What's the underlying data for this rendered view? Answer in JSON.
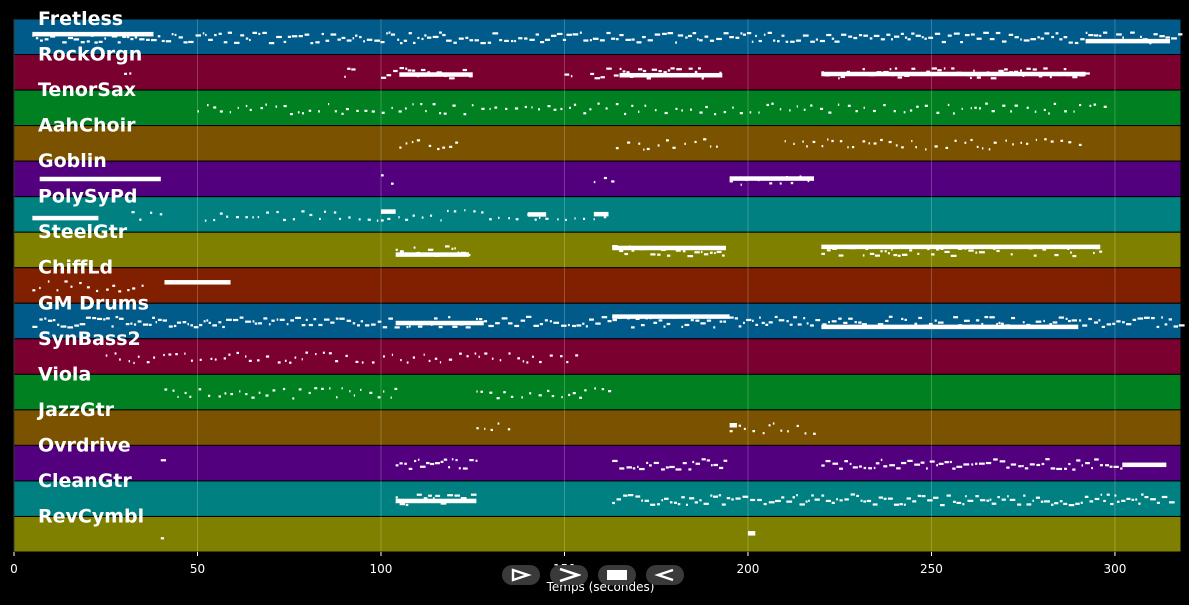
{
  "chart_data": {
    "type": "piano-roll",
    "xlabel": "Temps (secondes)",
    "xlim": [
      0,
      318
    ],
    "x_ticks": [
      0,
      50,
      100,
      150,
      200,
      250,
      300
    ],
    "grid": true,
    "tracks": [
      {
        "name": "Fretless",
        "color": "#005b8a",
        "segments": [
          [
            5,
            318
          ]
        ],
        "dense": true,
        "blocks": [
          [
            5,
            38
          ],
          [
            292,
            315
          ]
        ]
      },
      {
        "name": "RockOrgn",
        "color": "#7a0030",
        "segments": [
          [
            30,
            32
          ],
          [
            90,
            92
          ],
          [
            100,
            125
          ],
          [
            150,
            152
          ],
          [
            157,
            193
          ],
          [
            220,
            292
          ]
        ],
        "dense": true,
        "blocks": [
          [
            105,
            125
          ],
          [
            165,
            193
          ],
          [
            220,
            292
          ]
        ]
      },
      {
        "name": "TenorSax",
        "color": "#008020",
        "segments": [
          [
            50,
            298
          ]
        ],
        "dense": false,
        "blocks": []
      },
      {
        "name": "AahChoir",
        "color": "#7a5200",
        "segments": [
          [
            105,
            122
          ],
          [
            164,
            193
          ],
          [
            210,
            292
          ]
        ],
        "dense": false,
        "blocks": []
      },
      {
        "name": "Goblin",
        "color": "#53007f",
        "segments": [
          [
            100,
            104
          ],
          [
            158,
            163
          ],
          [
            195,
            218
          ]
        ],
        "dense": false,
        "blocks": [
          [
            7,
            40
          ],
          [
            195,
            218
          ]
        ]
      },
      {
        "name": "PolySyPd",
        "color": "#008080",
        "segments": [
          [
            32,
            40
          ],
          [
            52,
            162
          ]
        ],
        "dense": false,
        "blocks": [
          [
            5,
            23
          ],
          [
            100,
            104
          ],
          [
            140,
            145
          ],
          [
            158,
            162
          ]
        ]
      },
      {
        "name": "SteelGtr",
        "color": "#808000",
        "segments": [
          [
            104,
            124
          ],
          [
            163,
            194
          ],
          [
            220,
            296
          ]
        ],
        "dense": true,
        "blocks": [
          [
            104,
            124
          ],
          [
            163,
            194
          ],
          [
            220,
            296
          ]
        ]
      },
      {
        "name": "ChiffLd",
        "color": "#802000",
        "segments": [
          [
            5,
            35
          ]
        ],
        "dense": false,
        "blocks": [
          [
            41,
            59
          ]
        ]
      },
      {
        "name": "GM Drums",
        "color": "#005b8a",
        "segments": [
          [
            5,
            318
          ]
        ],
        "dense": true,
        "blocks": [
          [
            104,
            128
          ],
          [
            163,
            195
          ],
          [
            220,
            290
          ]
        ]
      },
      {
        "name": "SynBass2",
        "color": "#7a0030",
        "segments": [
          [
            25,
            153
          ]
        ],
        "dense": false,
        "blocks": []
      },
      {
        "name": "Viola",
        "color": "#008020",
        "segments": [
          [
            41,
            104
          ],
          [
            126,
            162
          ]
        ],
        "dense": false,
        "blocks": []
      },
      {
        "name": "JazzGtr",
        "color": "#7a5200",
        "segments": [
          [
            126,
            135
          ],
          [
            195,
            218
          ]
        ],
        "dense": false,
        "blocks": [
          [
            195,
            197
          ]
        ]
      },
      {
        "name": "Ovrdrive",
        "color": "#53007f",
        "segments": [
          [
            40,
            41
          ],
          [
            104,
            126
          ],
          [
            163,
            194
          ],
          [
            220,
            302
          ]
        ],
        "dense": true,
        "blocks": [
          [
            302,
            314
          ]
        ]
      },
      {
        "name": "CleanGtr",
        "color": "#008080",
        "segments": [
          [
            104,
            126
          ],
          [
            163,
            316
          ]
        ],
        "dense": true,
        "blocks": [
          [
            104,
            126
          ]
        ]
      },
      {
        "name": "RevCymbl",
        "color": "#808000",
        "segments": [
          [
            40,
            41
          ],
          [
            200,
            202
          ]
        ],
        "dense": false,
        "blocks": [
          [
            200,
            202
          ]
        ]
      }
    ]
  },
  "controls": [
    {
      "name": "play-button",
      "icon": "play-outline-icon"
    },
    {
      "name": "forward-button",
      "icon": "chevron-right-icon"
    },
    {
      "name": "stop-button",
      "icon": "stop-icon"
    },
    {
      "name": "back-button",
      "icon": "reverse-outline-icon"
    }
  ]
}
